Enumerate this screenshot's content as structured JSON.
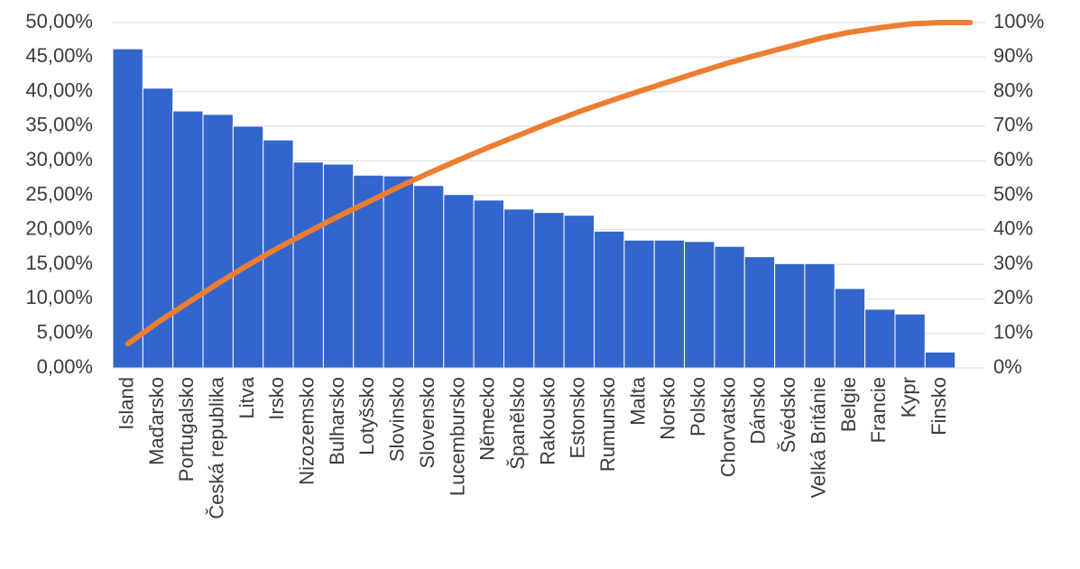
{
  "chart_data": {
    "type": "pareto",
    "categories": [
      "Island",
      "Maďarsko",
      "Portugalsko",
      "Česká republika",
      "Litva",
      "Irsko",
      "Nizozemsko",
      "Bulharsko",
      "Lotyšsko",
      "Slovinsko",
      "Slovensko",
      "Lucembursko",
      "Německo",
      "Španělsko",
      "Rakousko",
      "Estonsko",
      "Rumunsko",
      "Malta",
      "Norsko",
      "Polsko",
      "Chorvatsko",
      "Dánsko",
      "Švédsko",
      "Velká Británie",
      "Belgie",
      "Francie",
      "Kypr",
      "Finsko",
      null
    ],
    "series": [
      {
        "type": "bar",
        "color": "#3366cc",
        "values": [
          46.2,
          40.5,
          37.2,
          36.7,
          35.0,
          33.0,
          29.8,
          29.5,
          27.9,
          27.8,
          26.4,
          25.1,
          24.3,
          23.0,
          22.5,
          22.1,
          19.8,
          18.5,
          18.5,
          18.3,
          17.6,
          16.1,
          15.1,
          15.1,
          11.5,
          8.5,
          7.8,
          2.3,
          null
        ]
      },
      {
        "type": "line",
        "axis": "y2",
        "color": "#ed7d31",
        "values": [
          7.0,
          13.2,
          18.9,
          24.5,
          29.8,
          34.8,
          39.4,
          43.9,
          48.1,
          52.4,
          56.4,
          60.2,
          63.9,
          67.4,
          70.9,
          74.2,
          77.2,
          80.1,
          82.9,
          85.7,
          88.4,
          90.8,
          93.1,
          95.4,
          97.2,
          98.5,
          99.6,
          100,
          100
        ]
      }
    ],
    "ylim": [
      0,
      50
    ],
    "yticks": [
      {
        "value": 0,
        "label": "0,00%"
      },
      {
        "value": 5,
        "label": "5,00%"
      },
      {
        "value": 10,
        "label": "10,00%"
      },
      {
        "value": 15,
        "label": "15,00%"
      },
      {
        "value": 20,
        "label": "20,00%"
      },
      {
        "value": 25,
        "label": "25,00%"
      },
      {
        "value": 30,
        "label": "30,00%"
      },
      {
        "value": 35,
        "label": "35,00%"
      },
      {
        "value": 40,
        "label": "40,00%"
      },
      {
        "value": 45,
        "label": "45,00%"
      },
      {
        "value": 50,
        "label": "50,00%"
      }
    ],
    "y2lim": [
      0,
      100
    ],
    "y2ticks": [
      {
        "value": 0,
        "label": "0%"
      },
      {
        "value": 10,
        "label": "10%"
      },
      {
        "value": 20,
        "label": "20%"
      },
      {
        "value": 30,
        "label": "30%"
      },
      {
        "value": 40,
        "label": "40%"
      },
      {
        "value": 50,
        "label": "50%"
      },
      {
        "value": 60,
        "label": "60%"
      },
      {
        "value": 70,
        "label": "70%"
      },
      {
        "value": 80,
        "label": "80%"
      },
      {
        "value": 90,
        "label": "90%"
      },
      {
        "value": 100,
        "label": "100%"
      }
    ],
    "grid": true
  }
}
